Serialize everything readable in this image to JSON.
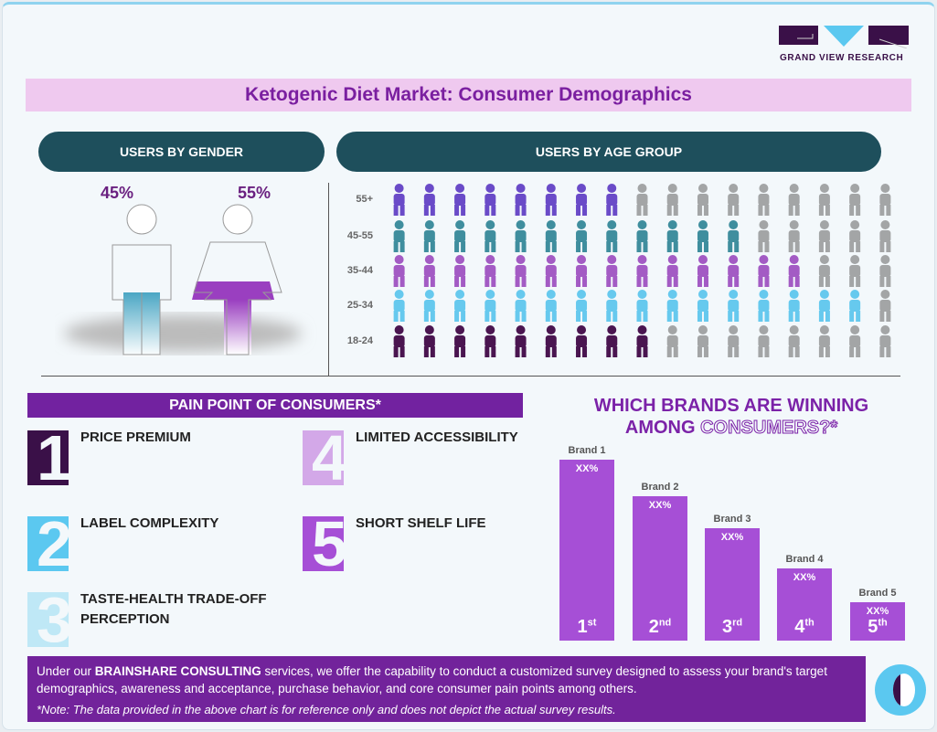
{
  "logo": {
    "name": "GRAND VIEW RESEARCH",
    "colors": [
      "#3a1048",
      "#5bc8f0"
    ]
  },
  "title": "Ketogenic Diet Market: Consumer Demographics",
  "gender": {
    "header": "USERS BY GENDER",
    "male": {
      "pct": "45%",
      "value": 45,
      "color": "#4aa6c4"
    },
    "female": {
      "pct": "55%",
      "value": 55,
      "color": "#9a3fc0"
    }
  },
  "age": {
    "header": "USERS BY AGE GROUP",
    "inactive_color": "#a3a5a6",
    "rows": [
      {
        "label": "55+",
        "fill": 0.47,
        "color": "#6a4bc8",
        "icon": "elderly-person-icon"
      },
      {
        "label": "45-55",
        "fill": 0.7,
        "color": "#3f8e9e",
        "icon": "family-icon"
      },
      {
        "label": "35-44",
        "fill": 0.85,
        "color": "#a35bc4",
        "icon": "parents-child-icon"
      },
      {
        "label": "25-34",
        "fill": 0.97,
        "color": "#66c9ee",
        "icon": "couple-icon"
      },
      {
        "label": "18-24",
        "fill": 0.55,
        "color": "#4a1550",
        "icon": "running-person-icon"
      }
    ]
  },
  "pain_points": {
    "header": "PAIN POINT OF CONSUMERS*",
    "items": [
      {
        "num": "1",
        "label": "PRICE PREMIUM",
        "color": "#3a1048"
      },
      {
        "num": "2",
        "label": "LABEL COMPLEXITY",
        "color": "#5bc8f0"
      },
      {
        "num": "3",
        "label": "TASTE-HEALTH TRADE-OFF PERCEPTION",
        "color": "#bfe8f6"
      },
      {
        "num": "4",
        "label": "LIMITED ACCESSIBILITY",
        "color": "#d3a8e8"
      },
      {
        "num": "5",
        "label": "SHORT SHELF LIFE",
        "color": "#a64fd6"
      }
    ]
  },
  "chart_data": {
    "type": "bar",
    "title_line1": "WHICH BRANDS ARE WINNING",
    "title_line2a": "AMONG ",
    "title_line2b": "CONSUMERS?*",
    "categories": [
      "Brand 1",
      "Brand 2",
      "Brand 3",
      "Brand 4",
      "Brand 5"
    ],
    "values": [
      100,
      80,
      62,
      40,
      21
    ],
    "data_labels": [
      "XX%",
      "XX%",
      "XX%",
      "XX%",
      "XX%"
    ],
    "ranks": [
      {
        "n": "1",
        "s": "st"
      },
      {
        "n": "2",
        "s": "nd"
      },
      {
        "n": "3",
        "s": "rd"
      },
      {
        "n": "4",
        "s": "th"
      },
      {
        "n": "5",
        "s": "th"
      }
    ],
    "color": "#a64fd6",
    "grid": false
  },
  "footer": {
    "pre": "Under our ",
    "brand": "BRAINSHARE CONSULTING",
    "post": " services, we offer the capability to conduct a customized survey designed to assess your brand's target demographics, awareness and acceptance, purchase behavior, and core consumer pain points among others.",
    "note": "*Note: The data provided in the above chart is for reference only and does not depict the actual survey results."
  }
}
